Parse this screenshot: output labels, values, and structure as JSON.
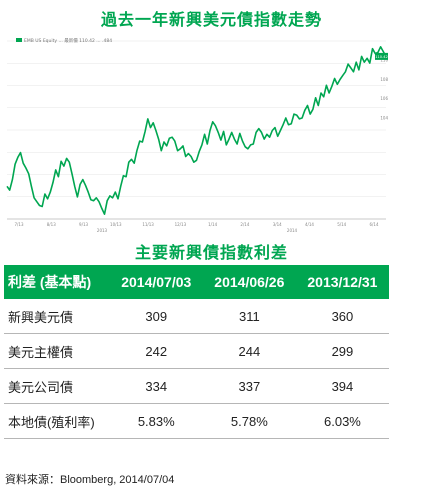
{
  "chart_title": "過去一年新興美元債指數走勢",
  "chart_data": {
    "type": "line",
    "series_color": "#00a651",
    "legend_text": "EMB US Equity ... 最新價 110.42 ... .484",
    "last_value_label": "110.42",
    "x_tick_labels": [
      "7/13",
      "8/13",
      "9/13",
      "10/13",
      "11/13",
      "12/13",
      "1/14",
      "2/14",
      "3/14",
      "4/14",
      "5/14",
      "6/14"
    ],
    "year_labels": [
      "2013",
      "2014"
    ],
    "y_tick_labels": [
      "104",
      "106",
      "108",
      "110"
    ],
    "values": [
      96.9,
      96.5,
      97.6,
      99.2,
      99.9,
      100.4,
      99.3,
      98.8,
      98.2,
      96.9,
      95.7,
      95.3,
      94.9,
      94.8,
      96.1,
      95.6,
      96.3,
      97.3,
      98.6,
      97.9,
      99.5,
      99.0,
      99.8,
      99.4,
      98.2,
      96.9,
      95.8,
      97.1,
      97.6,
      97.0,
      96.3,
      95.5,
      95.4,
      95.7,
      95.3,
      94.6,
      94.0,
      95.4,
      95.9,
      95.7,
      96.3,
      95.6,
      96.9,
      98.0,
      97.9,
      99.4,
      99.7,
      99.3,
      100.6,
      101.6,
      101.5,
      102.6,
      103.9,
      103.0,
      103.5,
      102.7,
      101.8,
      100.6,
      101.5,
      101.1,
      101.9,
      102.0,
      101.6,
      100.6,
      100.8,
      101.1,
      100.0,
      100.3,
      100.0,
      99.4,
      99.6,
      100.5,
      101.2,
      102.3,
      101.3,
      102.7,
      103.6,
      103.2,
      102.5,
      101.7,
      102.6,
      101.2,
      101.8,
      102.5,
      101.8,
      101.3,
      102.4,
      101.6,
      101.0,
      100.8,
      101.2,
      101.3,
      102.5,
      102.9,
      102.5,
      101.8,
      102.3,
      102.0,
      102.7,
      103.0,
      102.1,
      102.7,
      103.3,
      104.0,
      103.3,
      103.4,
      104.4,
      104.3,
      103.9,
      104.0,
      104.8,
      105.3,
      104.4,
      104.9,
      106.1,
      105.3,
      106.6,
      106.2,
      107.4,
      106.6,
      107.3,
      108.1,
      107.5,
      108.0,
      108.4,
      108.8,
      109.6,
      109.2,
      108.8,
      109.8,
      109.0,
      110.4,
      109.8,
      110.2,
      109.7,
      111.2,
      110.7,
      110.8,
      111.4,
      110.9,
      110.4
    ]
  },
  "table_title": "主要新興債指數利差",
  "table": {
    "headers": [
      "利差 (基本點)",
      "2014/07/03",
      "2014/06/26",
      "2013/12/31"
    ],
    "rows": [
      [
        "新興美元債",
        "309",
        "311",
        "360"
      ],
      [
        "美元主權債",
        "242",
        "244",
        "299"
      ],
      [
        "美元公司債",
        "334",
        "337",
        "394"
      ],
      [
        "本地債(殖利率)",
        "5.83%",
        "5.78%",
        "6.03%"
      ]
    ]
  },
  "source": "資料來源：Bloomberg, 2014/07/04"
}
